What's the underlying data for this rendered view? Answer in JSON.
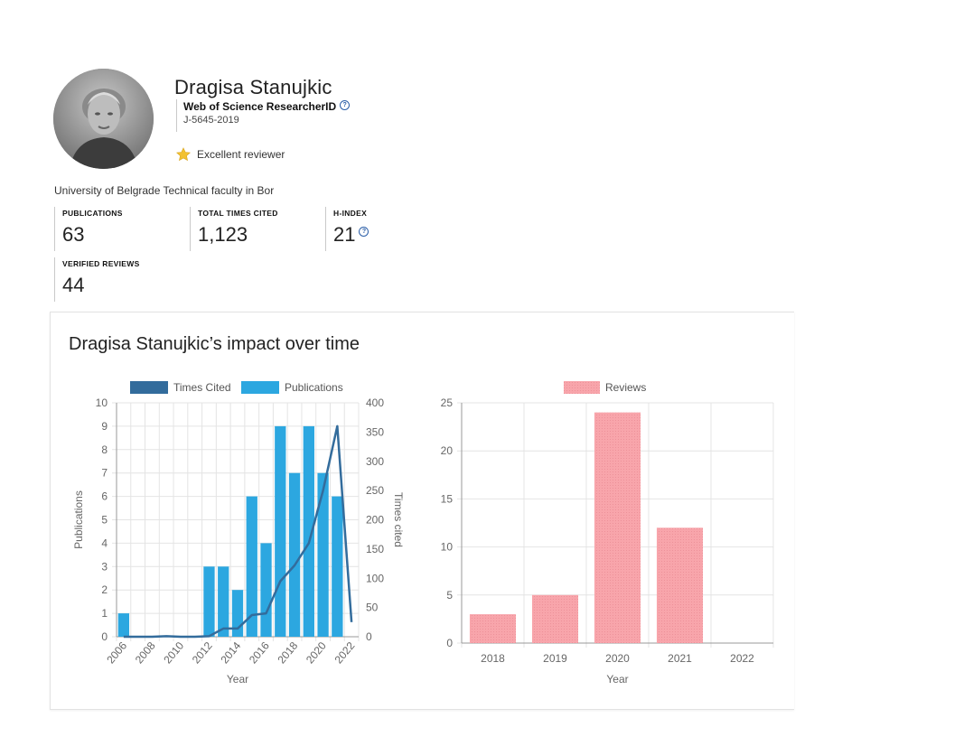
{
  "profile": {
    "name": "Dragisa Stanujkic",
    "researcher_id_label": "Web of Science ResearcherID",
    "researcher_id": "J-5645-2019",
    "badge": "Excellent reviewer",
    "affiliation": "University of Belgrade Technical faculty in Bor",
    "help_icon": "question-circle-icon",
    "badge_icon": "star-icon"
  },
  "metrics": {
    "publications": {
      "label": "PUBLICATIONS",
      "value": "63"
    },
    "times_cited": {
      "label": "TOTAL TIMES CITED",
      "value": "1,123"
    },
    "h_index": {
      "label": "H-INDEX",
      "value": "21"
    },
    "verified_reviews": {
      "label": "VERIFIED REVIEWS",
      "value": "44"
    }
  },
  "impact": {
    "title": "Dragisa Stanujkic’s impact over time"
  },
  "colors": {
    "publications_bar": "#2ca7e0",
    "times_cited_line": "#336c9c",
    "reviews_bar": "#f8a5ab",
    "grid": "#e4e4e4"
  },
  "chart_data": [
    {
      "type": "bar",
      "title": "",
      "xlabel": "Year",
      "ylabel": "Publications",
      "y2label": "Times cited",
      "legend_position": "top",
      "grid": true,
      "x": [
        "2006",
        "2007",
        "2008",
        "2009",
        "2010",
        "2011",
        "2012",
        "2013",
        "2014",
        "2015",
        "2016",
        "2017",
        "2018",
        "2019",
        "2020",
        "2021",
        "2022"
      ],
      "x_tick_labels": [
        "2006",
        "2008",
        "2010",
        "2012",
        "2014",
        "2016",
        "2018",
        "2020",
        "2022"
      ],
      "ylim": [
        0,
        10
      ],
      "y_ticks": [
        "0",
        "1",
        "2",
        "3",
        "4",
        "5",
        "6",
        "7",
        "8",
        "9",
        "10"
      ],
      "y2lim": [
        0,
        400
      ],
      "y2_ticks": [
        "0",
        "50",
        "100",
        "150",
        "200",
        "250",
        "300",
        "350",
        "400"
      ],
      "series": [
        {
          "name": "Times Cited",
          "type": "line",
          "axis": "right",
          "values": [
            0,
            0,
            0,
            1,
            0,
            0,
            1,
            14,
            14,
            37,
            40,
            95,
            122,
            160,
            250,
            360,
            25
          ]
        },
        {
          "name": "Publications",
          "type": "bar",
          "axis": "left",
          "values": [
            1,
            0,
            0,
            0,
            0,
            0,
            3,
            3,
            2,
            6,
            4,
            9,
            7,
            9,
            7,
            6,
            0
          ]
        }
      ]
    },
    {
      "type": "bar",
      "title": "",
      "xlabel": "Year",
      "ylabel": "",
      "legend_position": "top",
      "grid": true,
      "categories": [
        "2018",
        "2019",
        "2020",
        "2021",
        "2022"
      ],
      "ylim": [
        0,
        25
      ],
      "y_ticks": [
        "0",
        "5",
        "10",
        "15",
        "20",
        "25"
      ],
      "series": [
        {
          "name": "Reviews",
          "values": [
            3,
            5,
            24,
            12,
            0
          ]
        }
      ]
    }
  ]
}
